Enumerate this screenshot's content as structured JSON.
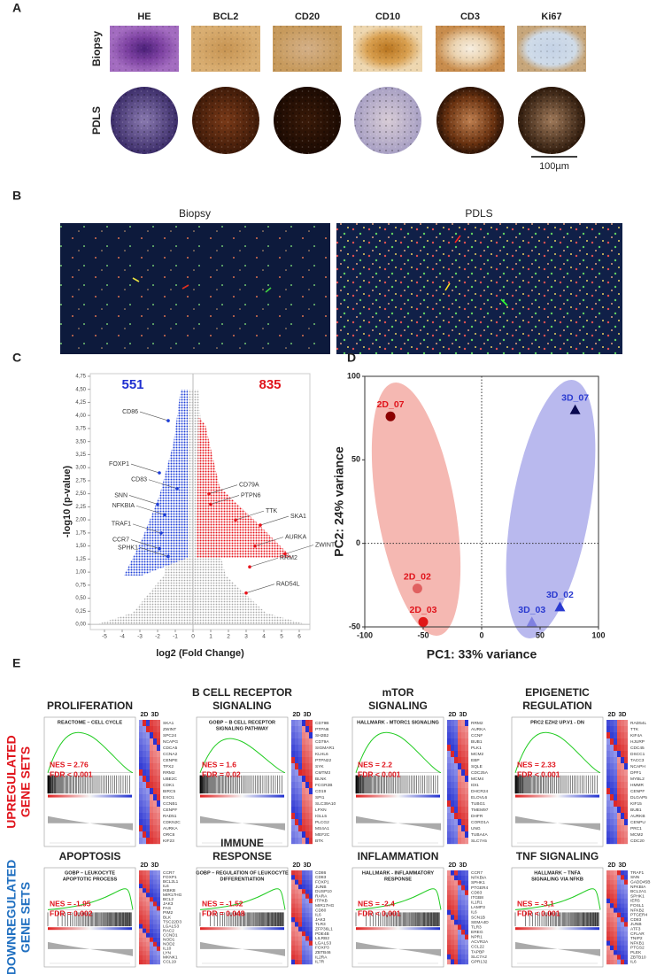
{
  "panel_a": {
    "label": "A",
    "columns": [
      "HE",
      "BCL2",
      "CD20",
      "CD10",
      "CD3",
      "Ki67"
    ],
    "rows": [
      "Biopsy",
      "PDLS"
    ],
    "scale_bar": "100µm"
  },
  "panel_b": {
    "label": "B",
    "images": [
      "Biopsy",
      "PDLS"
    ]
  },
  "chart_data": [
    {
      "type": "volcano",
      "panel": "C",
      "xlabel": "log2 (Fold Change)",
      "ylabel": "-log10 (p-value)",
      "xlim": [
        -5.8,
        6.6
      ],
      "ylim": [
        -0.1,
        4.8
      ],
      "xticks": [
        -5,
        -4,
        -3,
        -2,
        -1,
        0,
        1,
        2,
        3,
        4,
        5,
        6
      ],
      "yticks": [
        {
          "value": 0,
          "label": "0,00"
        },
        {
          "value": 0.25,
          "label": "0,25"
        },
        {
          "value": 0.5,
          "label": "0,50"
        },
        {
          "value": 0.75,
          "label": "0,75"
        },
        {
          "value": 1,
          "label": "1,00"
        },
        {
          "value": 1.25,
          "label": "1,25"
        },
        {
          "value": 1.5,
          "label": "1,50"
        },
        {
          "value": 1.75,
          "label": "1,75"
        },
        {
          "value": 2,
          "label": "2,00"
        },
        {
          "value": 2.25,
          "label": "2,25"
        },
        {
          "value": 2.5,
          "label": "2,50"
        },
        {
          "value": 2.75,
          "label": "2,75"
        },
        {
          "value": 3,
          "label": "3,00"
        },
        {
          "value": 3.25,
          "label": "3,25"
        },
        {
          "value": 3.5,
          "label": "3,50"
        },
        {
          "value": 3.75,
          "label": "3,75"
        },
        {
          "value": 4,
          "label": "4,00"
        },
        {
          "value": 4.25,
          "label": "4,25"
        },
        {
          "value": 4.5,
          "label": "4,50"
        },
        {
          "value": 4.75,
          "label": "4,75"
        }
      ],
      "annotations": [
        {
          "text": "551",
          "color": "#1f2fd0"
        },
        {
          "text": "835",
          "color": "#e0141c"
        }
      ],
      "labeled_points": {
        "labels": [
          "CD86",
          "FOXP1",
          "CD83",
          "SNN",
          "NFKBIA",
          "TRAF1",
          "CCR7",
          "SPHK1",
          "CD79A",
          "PTPN6",
          "TTK",
          "SKA1",
          "AURKA",
          "ZWINT",
          "RRM2",
          "RAD54L"
        ],
        "x": [
          -1.4,
          -1.9,
          -0.9,
          -2.0,
          -1.6,
          -1.8,
          -1.9,
          -1.4,
          0.9,
          1.0,
          2.4,
          3.8,
          3.5,
          5.2,
          3.2,
          3.0
        ],
        "y": [
          3.9,
          2.9,
          2.6,
          2.3,
          2.1,
          1.75,
          1.45,
          1.3,
          2.5,
          2.3,
          2.0,
          1.9,
          1.5,
          1.35,
          1.1,
          0.6
        ],
        "colors": [
          "#1f3fd8",
          "#e8141c"
        ]
      }
    },
    {
      "type": "scatter",
      "panel": "D",
      "xlabel": "PC1: 33% variance",
      "ylabel": "PC2: 24% variance",
      "xlim": [
        -100,
        100
      ],
      "ylim": [
        -50,
        100
      ],
      "xticks": [
        -100,
        -50,
        0,
        50,
        100
      ],
      "yticks": [
        -50,
        0,
        50,
        100
      ],
      "series": [
        {
          "labels": [
            "2D_07",
            "2D_02",
            "2D_03"
          ],
          "x": [
            -78,
            -55,
            -50
          ],
          "y": [
            76,
            -27,
            -47
          ],
          "marker": "circle",
          "color": "#e0141c",
          "point_colors": [
            "#8b0000",
            "#e06060",
            "#e01818"
          ]
        },
        {
          "labels": [
            "3D_07",
            "3D_02",
            "3D_03"
          ],
          "x": [
            80,
            67,
            43
          ],
          "y": [
            80,
            -38,
            -47
          ],
          "marker": "triangle",
          "color": "#2a3ad0",
          "point_colors": [
            "#0a0a50",
            "#2a3ad0",
            "#7f80e0"
          ]
        }
      ]
    }
  ],
  "panel_e": {
    "label": "E",
    "heatmap_columns": [
      "2D",
      "3D"
    ],
    "groups": [
      {
        "label": [
          "UPREGULATED",
          "GENE SETS"
        ],
        "color": "#e0141c",
        "sets": [
          {
            "title": [
              "PROLIFERATION"
            ],
            "subtitle": [
              "REACTOME – CELL CYCLE"
            ],
            "nes": "NES = 2.76",
            "fdr": "FDR < 0.001",
            "genes": [
              "SKA1",
              "ZWINT",
              "SPC24",
              "NCAPG",
              "CDCA5",
              "CCNA2",
              "CENPE",
              "TPX2",
              "RRM2",
              "UBE2C",
              "CDK1",
              "BIRC5",
              "EXO1",
              "CCNB1",
              "CENPF",
              "RAD51",
              "CDKN2C",
              "AURKA",
              "ORC6",
              "KIF23"
            ]
          },
          {
            "title": [
              "B CELL RECEPTOR",
              "SIGNALING"
            ],
            "subtitle": [
              "GOBP – B CELL RECEPTOR",
              "SIGNALING PATHWAY"
            ],
            "nes": "NES = 1.6",
            "fdr": "FDR = 0.02",
            "genes": [
              "CD79B",
              "PTPN6",
              "SH2B2",
              "CD79A",
              "SIGMAR1",
              "KLHL6",
              "PTPN22",
              "SYK",
              "CMTM3",
              "BLNK",
              "FCGR2B",
              "CD19",
              "SPI1",
              "SLC39A10",
              "LPXN",
              "IGLL5",
              "PLCG2",
              "MS4A1",
              "MEF2C",
              "BTK"
            ]
          },
          {
            "title": [
              "mTOR",
              "SIGNALING"
            ],
            "subtitle": [
              "HALLMARK - MTORC1 SIGNALING"
            ],
            "nes": "NES = 2.2",
            "fdr": "FDR < 0.001",
            "genes": [
              "RRM2",
              "AURKA",
              "CCNF",
              "BUB1",
              "PLK1",
              "MCM2",
              "EBP",
              "SQLE",
              "CDC25A",
              "MCM4",
              "IDI1",
              "DHCR24",
              "ELOVL6",
              "TUBG1",
              "TMEM97",
              "DHFR",
              "CORO1A",
              "UNG",
              "TUBA4A",
              "SLC7A5"
            ]
          },
          {
            "title": [
              "EPIGENETIC",
              "REGULATION"
            ],
            "subtitle": [
              "PRC2 EZH2 UP.V1 - DN"
            ],
            "nes": "NES = 2.33",
            "fdr": "FDR < 0.001",
            "genes": [
              "RAD54L",
              "TTK",
              "KIF4A",
              "HJURP",
              "CDC45",
              "DSCC1",
              "TACC3",
              "NCAPH",
              "DPF1",
              "MYBL2",
              "HMMR",
              "CENPF",
              "DLGAP5",
              "KIF15",
              "BUB1",
              "AURKB",
              "CENPU",
              "PRC1",
              "MCM2",
              "CDC20"
            ]
          }
        ]
      },
      {
        "label": [
          "DOWNREGULATED",
          "GENE SETS"
        ],
        "color": "#1f6fc0",
        "sets": [
          {
            "title": [
              "APOPTOSIS"
            ],
            "subtitle": [
              "GOBP – LEUKOCYTE",
              "APOPTOTIC PROCESS"
            ],
            "nes": "NES = -1.95",
            "fdr": "FDR = 0.002",
            "genes": [
              "CCR7",
              "FOXP1",
              "BCL2L1",
              "IL6",
              "IKBKB",
              "MIR17HG",
              "BCL2",
              "JAK3",
              "FAS",
              "PIM2",
              "BLK",
              "TSC22D3",
              "LGALS3",
              "RAC2",
              "CCND1",
              "NOD1",
              "NOD2",
              "IL10",
              "LYN",
              "MKNK1",
              "CCL19"
            ]
          },
          {
            "title": [
              "IMMUNE",
              "RESPONSE"
            ],
            "subtitle": [
              "GOBP – REGULATION OF LEUKOCYTE",
              "DIFFERENTIATION"
            ],
            "nes": "NES = -1.52",
            "fdr": "FDR = 0.048",
            "genes": [
              "CD86",
              "CD83",
              "FOXP1",
              "JUNB",
              "DUSP10",
              "RARA",
              "ITPKB",
              "MIR17HG",
              "CD80",
              "IL6",
              "JAK3",
              "TLR3",
              "ZFP36L1",
              "PDE4B",
              "LILRB2",
              "LGALS3",
              "FOXP3",
              "ZBTB46",
              "IL2RA",
              "IL7R"
            ]
          },
          {
            "title": [
              "INFLAMMATION"
            ],
            "subtitle": [
              "HALLMARK - INFLAMMATORY",
              "RESPONSE"
            ],
            "nes": "NES = -2.4",
            "fdr": "FDR < 0,001",
            "genes": [
              "CCR7",
              "NFKBIA",
              "SPHK1",
              "PTGER4",
              "CD83",
              "ITGB8",
              "IL1R1",
              "LAMP3",
              "IL6",
              "SCN1B",
              "SEMA4D",
              "TLR3",
              "EREG",
              "NPR1",
              "ACVR2A",
              "CCL22",
              "TAPBP",
              "SLC7A2",
              "GPR132"
            ]
          },
          {
            "title": [
              "TNF SIGNALING"
            ],
            "subtitle": [
              "HALLMARK – TNFA",
              "SIGNALING VIA NFKB"
            ],
            "nes": "NES = -3,1",
            "fdr": "FDR < 0.001",
            "genes": [
              "TRAF1",
              "SNN",
              "GADD45B",
              "NFKBIA",
              "BCL2A1",
              "SPHK1",
              "IER5",
              "FOSL1",
              "NFKB2",
              "PTGER4",
              "CD83",
              "JUNB",
              "ATF3",
              "CFLAR",
              "TNIP2",
              "NFKB1",
              "PTGS2",
              "PLEK",
              "ZBTB10",
              "IL6"
            ]
          }
        ]
      }
    ]
  }
}
